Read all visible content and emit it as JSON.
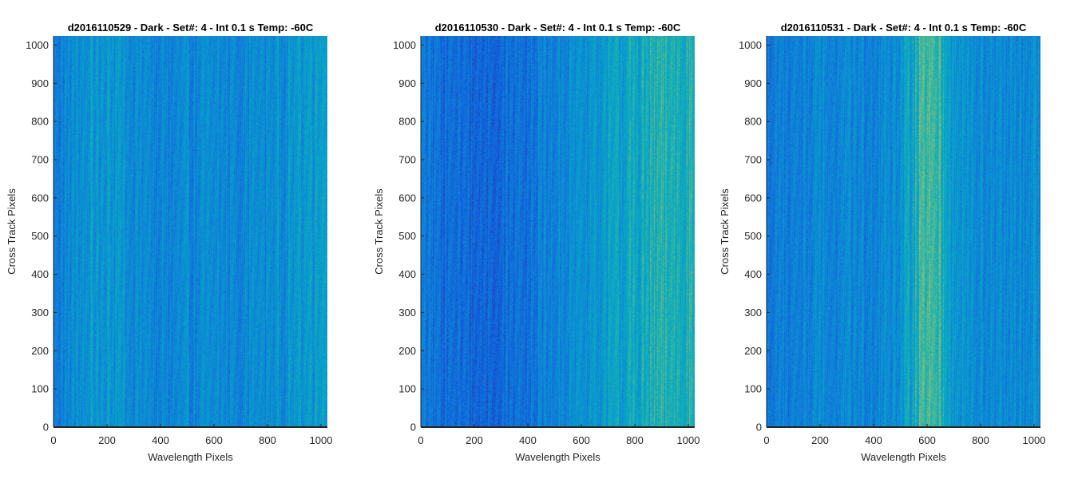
{
  "chart_data": [
    {
      "type": "heatmap",
      "title": "d2016110529 - Dark - Set#: 4 - Int 0.1 s Temp: -60C",
      "xlabel": "Wavelength Pixels",
      "ylabel": "Cross Track Pixels",
      "xlim": [
        0,
        1024
      ],
      "ylim": [
        0,
        1024
      ],
      "xticks": [
        0,
        200,
        400,
        600,
        800,
        1000
      ],
      "yticks": [
        0,
        100,
        200,
        300,
        400,
        500,
        600,
        700,
        800,
        900,
        1000
      ],
      "colormap": "parula",
      "intensity_profile": {
        "x": [
          0,
          100,
          200,
          300,
          400,
          500,
          600,
          700,
          800,
          900,
          1000,
          1024
        ],
        "relative_level": [
          0.3,
          0.4,
          0.44,
          0.38,
          0.33,
          0.34,
          0.36,
          0.36,
          0.38,
          0.42,
          0.5,
          0.5
        ]
      },
      "grid": false
    },
    {
      "type": "heatmap",
      "title": "d2016110530 - Dark - Set#: 4 - Int 0.1 s Temp: -60C",
      "xlabel": "Wavelength Pixels",
      "ylabel": "Cross Track Pixels",
      "xlim": [
        0,
        1024
      ],
      "ylim": [
        0,
        1024
      ],
      "xticks": [
        0,
        200,
        400,
        600,
        800,
        1000
      ],
      "yticks": [
        0,
        100,
        200,
        300,
        400,
        500,
        600,
        700,
        800,
        900,
        1000
      ],
      "colormap": "parula",
      "intensity_profile": {
        "x": [
          0,
          100,
          200,
          300,
          400,
          500,
          600,
          700,
          800,
          900,
          1000,
          1024
        ],
        "relative_level": [
          0.28,
          0.24,
          0.2,
          0.22,
          0.27,
          0.32,
          0.4,
          0.46,
          0.52,
          0.58,
          0.6,
          0.6
        ]
      },
      "grid": false
    },
    {
      "type": "heatmap",
      "title": "d2016110531 - Dark - Set#: 4 - Int 0.1 s Temp: -60C",
      "xlabel": "Wavelength Pixels",
      "ylabel": "Cross Track Pixels",
      "xlim": [
        0,
        1024
      ],
      "ylim": [
        0,
        1024
      ],
      "xticks": [
        0,
        200,
        400,
        600,
        800,
        1000
      ],
      "yticks": [
        0,
        100,
        200,
        300,
        400,
        500,
        600,
        700,
        800,
        900,
        1000
      ],
      "colormap": "parula",
      "intensity_profile": {
        "x": [
          0,
          100,
          200,
          300,
          400,
          500,
          550,
          600,
          650,
          700,
          800,
          900,
          1000,
          1024
        ],
        "relative_level": [
          0.28,
          0.32,
          0.34,
          0.34,
          0.35,
          0.4,
          0.55,
          0.72,
          0.62,
          0.42,
          0.36,
          0.34,
          0.36,
          0.36
        ]
      },
      "grid": false
    }
  ]
}
